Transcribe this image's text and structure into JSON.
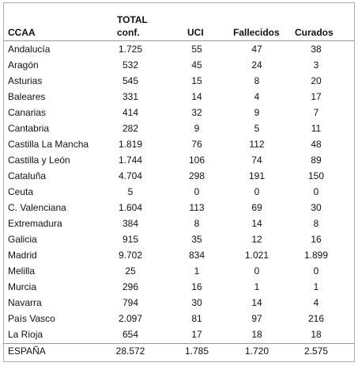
{
  "table": {
    "header": [
      "CCAA",
      [
        "TOTAL",
        "conf."
      ],
      "UCI",
      "Fallecidos",
      "Curados"
    ],
    "rows": [
      [
        "Andalucía",
        "1.725",
        "55",
        "47",
        "38"
      ],
      [
        "Aragón",
        "532",
        "45",
        "24",
        "3"
      ],
      [
        "Asturias",
        "545",
        "15",
        "8",
        "20"
      ],
      [
        "Baleares",
        "331",
        "14",
        "4",
        "17"
      ],
      [
        "Canarias",
        "414",
        "32",
        "9",
        "7"
      ],
      [
        "Cantabria",
        "282",
        "9",
        "5",
        "11"
      ],
      [
        "Castilla La Mancha",
        "1.819",
        "76",
        "112",
        "48"
      ],
      [
        "Castilla y León",
        "1.744",
        "106",
        "74",
        "89"
      ],
      [
        "Cataluña",
        "4.704",
        "298",
        "191",
        "150"
      ],
      [
        "Ceuta",
        "5",
        "0",
        "0",
        "0"
      ],
      [
        "C. Valenciana",
        "1.604",
        "113",
        "69",
        "30"
      ],
      [
        "Extremadura",
        "384",
        "8",
        "14",
        "8"
      ],
      [
        "Galicia",
        "915",
        "35",
        "12",
        "16"
      ],
      [
        "Madrid",
        "9.702",
        "834",
        "1.021",
        "1.899"
      ],
      [
        "Melilla",
        "25",
        "1",
        "0",
        "0"
      ],
      [
        "Murcia",
        "296",
        "16",
        "1",
        "1"
      ],
      [
        "Navarra",
        "794",
        "30",
        "14",
        "4"
      ],
      [
        "País Vasco",
        "2.097",
        "81",
        "97",
        "216"
      ],
      [
        "La Rioja",
        "654",
        "17",
        "18",
        "18"
      ]
    ],
    "total": [
      "ESPAÑA",
      "28.572",
      "1.785",
      "1.720",
      "2.575"
    ]
  }
}
